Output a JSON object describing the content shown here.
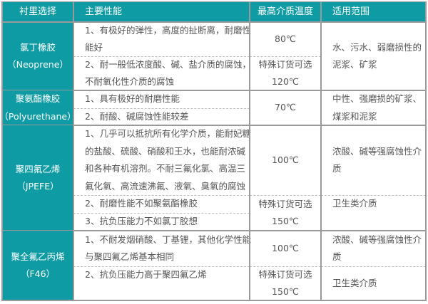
{
  "header": {
    "col1": "衬里选择",
    "col2": "主要性能",
    "col3": "最高介质温度",
    "col4": "适用范围"
  },
  "colors": {
    "teal": "#0e9ba4",
    "border": "#9a9a9a",
    "text": "#555555"
  },
  "rows": [
    {
      "name": [
        "氯丁橡胶",
        "（Neoprene）"
      ],
      "items": [
        [
          "1、有极好的弹性，高度的扯断离，耐磨性",
          "能好"
        ],
        [
          "2、耐一般低浓度酸、碱、盐介质的腐蚀，",
          "不耐氧化性介质的腐蚀"
        ]
      ],
      "temps": [
        [
          "80℃"
        ],
        [
          "特殊订货可选",
          "120℃"
        ]
      ],
      "scope": [
        [
          "水、污水、弱磨损性的",
          "泥浆、矿浆"
        ]
      ]
    },
    {
      "name": [
        "聚氨酯橡胶",
        "（Polyurethane）"
      ],
      "items": [
        [
          "1、具有极好的耐磨性能"
        ],
        [
          "2、耐酸、碱腐蚀性能较差"
        ]
      ],
      "temps": [
        [
          "70℃"
        ]
      ],
      "scope": [
        [
          "中性、强磨损的矿浆、",
          "煤浆和泥浆"
        ]
      ]
    },
    {
      "name": [
        "聚四氟乙烯",
        "（JPEFE）"
      ],
      "items": [
        [
          "1、几乎可以抵抗所有化学介质，能耐妃糖",
          "的盐酸、硫酸、硝酸和王水，也能耐浓碱",
          "和各种有机溶剂。不耐三氟化氯、高温三",
          "氟化氧、高流速沸氟、液氧、臭氧的腐蚀"
        ],
        [
          "2、耐磨性能不如聚氨酯橡胶"
        ],
        [
          "3、抗负压能力不如氯丁胶想"
        ]
      ],
      "temps": [
        [
          "100℃"
        ],
        [
          "特殊订货可选",
          "150℃"
        ]
      ],
      "scope": [
        [
          "浓酸、碱等强腐蚀性介",
          "质"
        ],
        [
          "卫生类介质"
        ]
      ]
    },
    {
      "name": [
        "聚全氟乙丙烯",
        "（F46）"
      ],
      "items": [
        [
          "1、不耐发烟硝酸、丁基锂，其他化学性能",
          "与聚四氟乙烯基本相同"
        ],
        [
          "2、抗负压能力高于聚四氟乙烯"
        ]
      ],
      "temps": [
        [
          "100℃"
        ],
        [
          "特殊订货可选",
          "150℃"
        ]
      ],
      "scope": [
        [
          "浓酸、碱等强腐蚀性介",
          "质"
        ],
        [
          "卫生类介质"
        ]
      ]
    }
  ]
}
